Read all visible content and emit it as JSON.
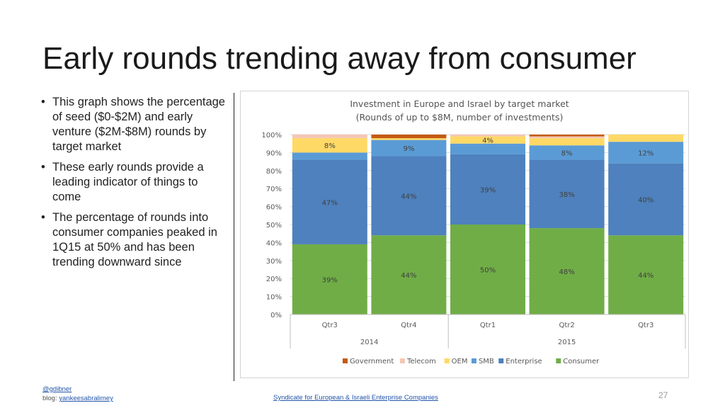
{
  "slide": {
    "title": "Early rounds trending away from consumer",
    "bullets": [
      "This graph shows the percentage of seed ($0-$2M) and early venture ($2M-$8M) rounds by target market",
      "These early rounds provide a leading indicator of things to come",
      "The percentage of rounds into consumer companies peaked in 1Q15 at 50% and has been trending downward since"
    ],
    "footer": {
      "handle": "@gdibner",
      "blog_prefix": "blog: ",
      "blog_link": "yankeesabralimey",
      "center_link": "Syndicate for European & Israeli Enterprise Companies",
      "page_number": "27"
    }
  },
  "chart_data": {
    "type": "bar",
    "stacked": true,
    "title": "Investment in Europe and Israel by target market",
    "subtitle": "(Rounds of up to $8M, number of investments)",
    "categories": [
      "Qtr3",
      "Qtr4",
      "Qtr1",
      "Qtr2",
      "Qtr3"
    ],
    "category_groups": [
      {
        "label": "2014",
        "span": 2
      },
      {
        "label": "2015",
        "span": 3
      }
    ],
    "ylim": [
      0,
      100
    ],
    "yticks": [
      "0%",
      "10%",
      "20%",
      "30%",
      "40%",
      "50%",
      "60%",
      "70%",
      "80%",
      "90%",
      "100%"
    ],
    "grid": true,
    "legend_position": "bottom",
    "series": [
      {
        "name": "Consumer",
        "color": "#70ad47",
        "values": [
          39,
          44,
          50,
          48,
          44
        ],
        "labels": [
          "39%",
          "44%",
          "50%",
          "48%",
          "44%"
        ]
      },
      {
        "name": "Enterprise",
        "color": "#4e81bd",
        "values": [
          47,
          44,
          39,
          38,
          40
        ],
        "labels": [
          "47%",
          "44%",
          "39%",
          "38%",
          "40%"
        ]
      },
      {
        "name": "SMB",
        "color": "#5b9bd5",
        "values": [
          4,
          9,
          6,
          8,
          12
        ],
        "labels": [
          "",
          "9%",
          "",
          "8%",
          "12%"
        ]
      },
      {
        "name": "OEM",
        "color": "#ffd966",
        "values": [
          8,
          1,
          4,
          4,
          4
        ],
        "labels": [
          "8%",
          "",
          "4%",
          "",
          ""
        ]
      },
      {
        "name": "Telecom",
        "color": "#f4c7b4",
        "values": [
          2,
          0,
          1,
          1,
          0
        ],
        "labels": [
          "",
          "",
          "",
          "",
          ""
        ]
      },
      {
        "name": "Government",
        "color": "#c55a11",
        "values": [
          0,
          2,
          0,
          1,
          0
        ],
        "labels": [
          "",
          "",
          "",
          "",
          ""
        ]
      }
    ],
    "legend_order": [
      "Government",
      "Telecom",
      "OEM",
      "SMB",
      "Enterprise",
      "Consumer"
    ]
  }
}
